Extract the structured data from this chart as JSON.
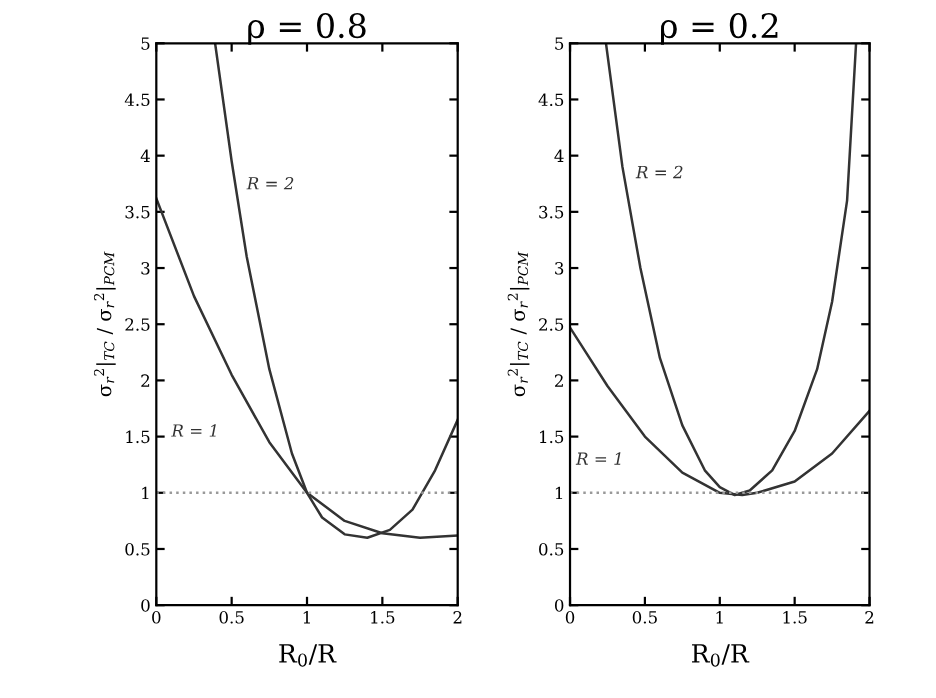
{
  "chart_data": [
    {
      "type": "line",
      "title": "ρ = 0.8",
      "xlabel": "R$_{0}$/R",
      "ylabel": "σ$_{r}$$^{2}$|$_{TC}$ / σ$_{r}$$^{2}$|$_{PCM}$",
      "xlim": [
        0,
        2
      ],
      "ylim": [
        0,
        5
      ],
      "xticks": [
        0,
        0.5,
        1,
        1.5,
        2
      ],
      "yticks": [
        0,
        0.5,
        1,
        1.5,
        2,
        2.5,
        3,
        3.5,
        4,
        4.5,
        5
      ],
      "grid": false,
      "legend": false,
      "series": [
        {
          "name": "R = 1",
          "color": "#333333",
          "x": [
            0,
            0.25,
            0.5,
            0.75,
            1,
            1.25,
            1.5,
            1.75,
            2
          ],
          "values": [
            3.62,
            2.75,
            2.05,
            1.45,
            1.0,
            0.75,
            0.64,
            0.6,
            0.62
          ]
        },
        {
          "name": "R = 2",
          "color": "#333333",
          "x": [
            0.39,
            0.5,
            0.6,
            0.75,
            0.9,
            1,
            1.1,
            1.25,
            1.4,
            1.55,
            1.7,
            1.85,
            2
          ],
          "values": [
            5,
            3.95,
            3.1,
            2.1,
            1.35,
            1.0,
            0.78,
            0.63,
            0.6,
            0.67,
            0.85,
            1.2,
            1.65
          ]
        }
      ],
      "ref_lines": [
        {
          "axis": "y",
          "value": 1,
          "color": "#999999",
          "line_style": "dotted"
        }
      ]
    },
    {
      "type": "line",
      "title": "ρ = 0.2",
      "xlabel": "R$_{0}$/R",
      "ylabel": "σ$_{r}$$^{2}$|$_{TC}$ / σ$_{r}$$^{2}$|$_{PCM}$",
      "xlim": [
        0,
        2
      ],
      "ylim": [
        0,
        5
      ],
      "xticks": [
        0,
        0.5,
        1,
        1.5,
        2
      ],
      "yticks": [
        0,
        0.5,
        1,
        1.5,
        2,
        2.5,
        3,
        3.5,
        4,
        4.5,
        5
      ],
      "grid": false,
      "legend": false,
      "series": [
        {
          "name": "R = 1",
          "color": "#333333",
          "x": [
            0,
            0.25,
            0.5,
            0.75,
            1,
            1.15,
            1.25,
            1.5,
            1.75,
            2
          ],
          "values": [
            2.47,
            1.95,
            1.5,
            1.18,
            1.0,
            0.98,
            1.0,
            1.1,
            1.35,
            1.73
          ]
        },
        {
          "name": "R = 2",
          "color": "#333333",
          "x": [
            0.24,
            0.35,
            0.47,
            0.6,
            0.75,
            0.9,
            1.0,
            1.1,
            1.2,
            1.35,
            1.5,
            1.65,
            1.75,
            1.85,
            1.91
          ],
          "values": [
            5,
            3.9,
            3.0,
            2.2,
            1.6,
            1.2,
            1.05,
            0.98,
            1.02,
            1.2,
            1.55,
            2.1,
            2.7,
            3.6,
            5
          ]
        }
      ],
      "ref_lines": [
        {
          "axis": "y",
          "value": 1,
          "color": "#999999",
          "line_style": "dotted"
        }
      ]
    }
  ]
}
